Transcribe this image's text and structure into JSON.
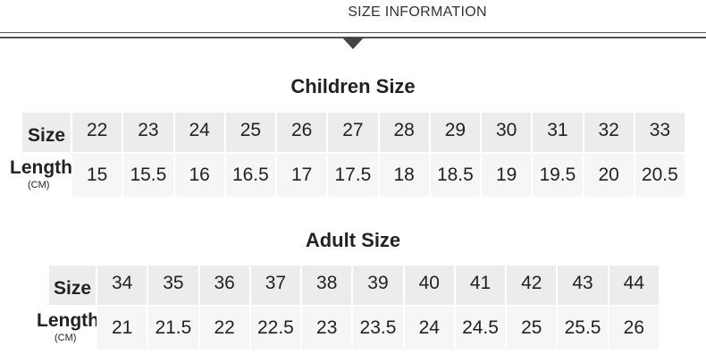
{
  "header": {
    "title": "SIZE INFORMATION"
  },
  "tables": [
    {
      "title": "Children Size",
      "size_label": "Size",
      "length_label": "Length",
      "unit": "(CM)",
      "sizes": [
        22,
        23,
        24,
        25,
        26,
        27,
        28,
        29,
        30,
        31,
        32,
        33
      ],
      "lengths": [
        15,
        15.5,
        16,
        16.5,
        17,
        17.5,
        18,
        18.5,
        19,
        19.5,
        20,
        20.5
      ]
    },
    {
      "title": "Adult Size",
      "size_label": "Size",
      "length_label": "Length",
      "unit": "(CM)",
      "sizes": [
        34,
        35,
        36,
        37,
        38,
        39,
        40,
        41,
        42,
        43,
        44
      ],
      "lengths": [
        21,
        21.5,
        22,
        22.5,
        23,
        23.5,
        24,
        24.5,
        25,
        25.5,
        26
      ]
    }
  ]
}
